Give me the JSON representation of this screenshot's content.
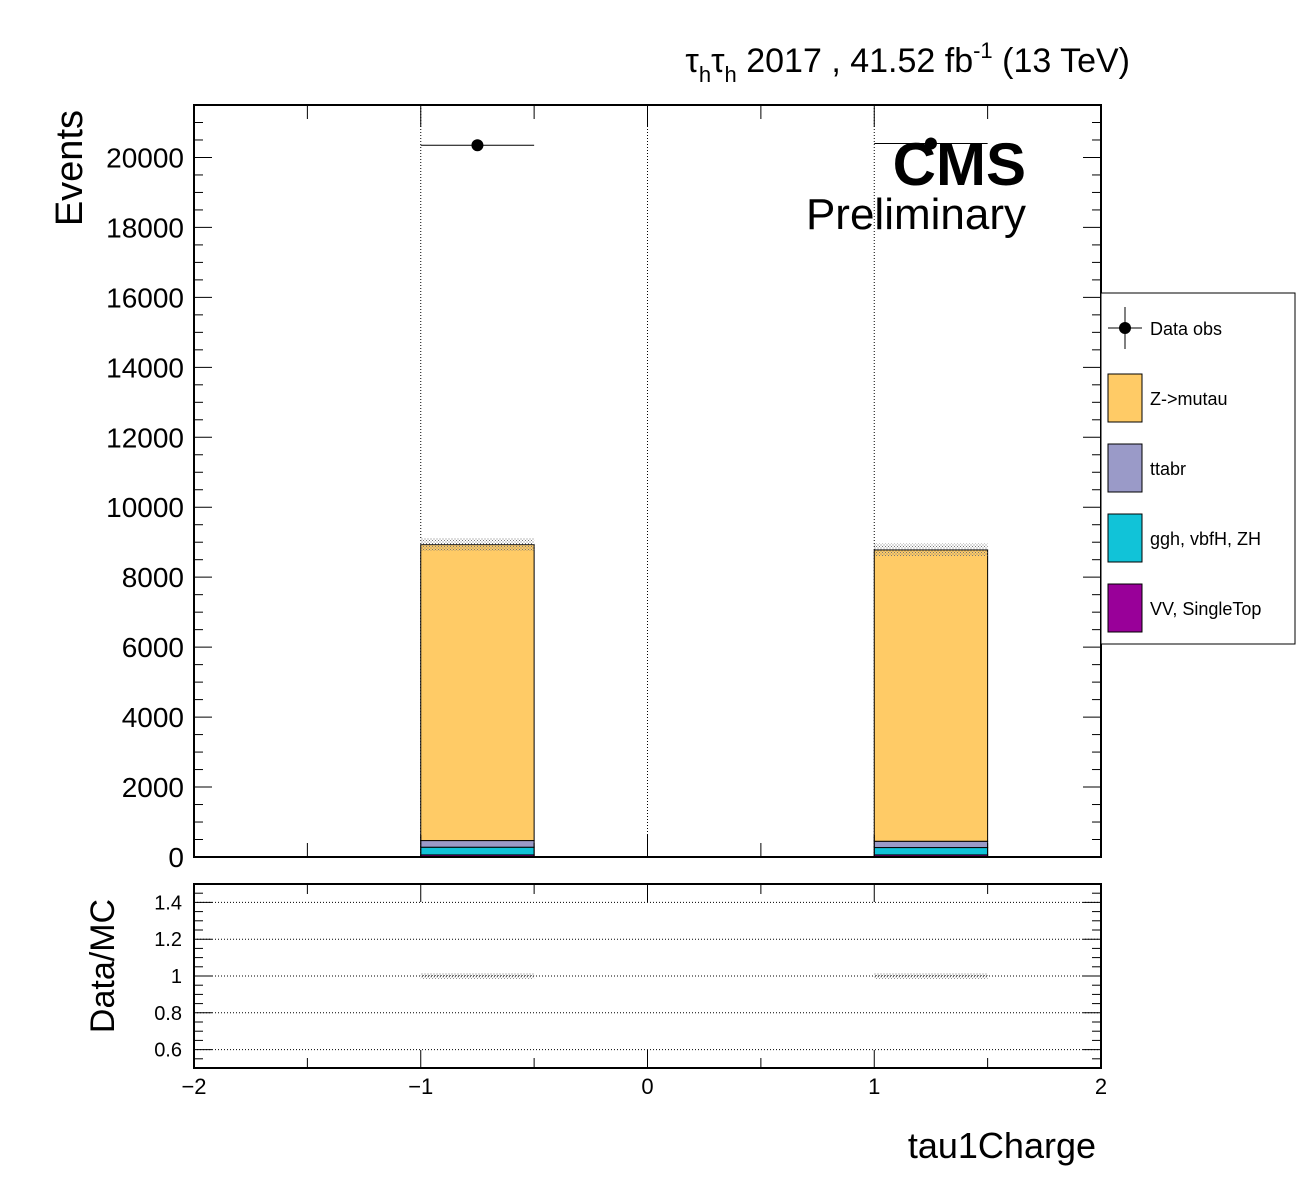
{
  "header": {
    "channel_tau": "τ",
    "channel_sub": "h",
    "lumi_text": " 2017 , 41.52 fb",
    "lumi_exp": "-1",
    "energy": " (13 TeV)"
  },
  "cms_label": "CMS",
  "preliminary_label": "Preliminary",
  "chart_data": [
    {
      "type": "bar",
      "stacked": true,
      "xlabel": "tau1Charge",
      "ylabel": "Events",
      "xlim": [
        -2,
        2
      ],
      "ylim": [
        0,
        21500
      ],
      "x_tick_labels": [
        "−2",
        "−1",
        "0",
        "1",
        "2"
      ],
      "y_ticks": [
        0,
        2000,
        4000,
        6000,
        8000,
        10000,
        12000,
        14000,
        16000,
        18000,
        20000
      ],
      "bins": [
        [
          -1,
          -0.5
        ],
        [
          1,
          1.5
        ]
      ],
      "series": [
        {
          "name": "VV, SingleTop",
          "color": "#990099",
          "values": [
            60,
            60
          ]
        },
        {
          "name": "ggh, vbfH, ZH",
          "color": "#11c3d8",
          "values": [
            220,
            210
          ]
        },
        {
          "name": "ttabr",
          "color": "#9a9ac8",
          "values": [
            190,
            180
          ]
        },
        {
          "name": "Z->mutau",
          "color": "#ffcb66",
          "values": [
            8460,
            8330
          ]
        }
      ],
      "mc_uncertainty": [
        180,
        180
      ],
      "data_obs": {
        "name": "Data obs",
        "x": [
          -0.75,
          1.25
        ],
        "y": [
          20350,
          20400
        ],
        "xerr": 0.25
      },
      "legend_position": "right"
    },
    {
      "type": "ratio",
      "ylabel": "Data/MC",
      "xlim": [
        -2,
        2
      ],
      "ylim": [
        0.5,
        1.5
      ],
      "y_ticks": [
        0.6,
        0.8,
        1,
        1.2,
        1.4
      ],
      "y_tick_labels": [
        "0.6",
        "0.8",
        "1",
        "1.2",
        "1.4"
      ],
      "unc_band": {
        "bins": [
          [
            -1,
            -0.5
          ],
          [
            1,
            1.5
          ]
        ],
        "low": [
          0.985,
          0.985
        ],
        "high": [
          1.015,
          1.015
        ]
      }
    }
  ]
}
